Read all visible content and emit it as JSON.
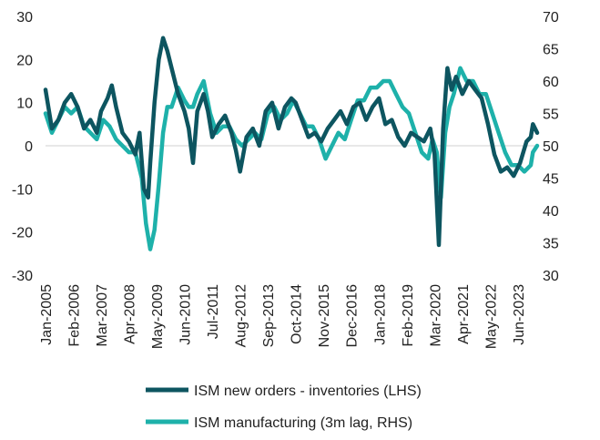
{
  "chart_data": {
    "type": "line",
    "title": "",
    "xlabel": "",
    "ylabel_left": "",
    "ylabel_right": "",
    "x_range": [
      "2005-01",
      "2024-03"
    ],
    "y_left_lim": [
      -30,
      30
    ],
    "y_left_ticks": [
      "30",
      "20",
      "10",
      "0",
      "-10",
      "-20",
      "-30"
    ],
    "y_right_lim": [
      30,
      70
    ],
    "y_right_ticks": [
      "70",
      "65",
      "60",
      "55",
      "50",
      "45",
      "40",
      "35",
      "30"
    ],
    "x_tick_labels": [
      "Jan-2005",
      "Feb-2006",
      "Mar-2007",
      "Apr-2008",
      "May-2009",
      "Jun-2010",
      "Jul-2011",
      "Aug-2012",
      "Sep-2013",
      "Oct-2014",
      "Nov-2015",
      "Dec-2016",
      "Jan-2018",
      "Feb-2019",
      "Mar-2020",
      "Apr-2021",
      "May-2022",
      "Jun-2023"
    ],
    "x_tick_dates": [
      "2005-01",
      "2006-02",
      "2007-03",
      "2008-04",
      "2009-05",
      "2010-06",
      "2011-07",
      "2012-08",
      "2013-09",
      "2014-10",
      "2015-11",
      "2016-12",
      "2018-01",
      "2019-02",
      "2020-03",
      "2021-04",
      "2022-05",
      "2023-06"
    ],
    "grid": false,
    "zero_line": true,
    "legend_position": "bottom",
    "series": [
      {
        "name": "ISM new orders - inventories (LHS)",
        "axis": "left",
        "color": "#0d5560",
        "points": [
          [
            "2005-01",
            13
          ],
          [
            "2005-04",
            4
          ],
          [
            "2005-07",
            6
          ],
          [
            "2005-10",
            10
          ],
          [
            "2006-01",
            12
          ],
          [
            "2006-04",
            9
          ],
          [
            "2006-07",
            4
          ],
          [
            "2006-10",
            6
          ],
          [
            "2007-01",
            3
          ],
          [
            "2007-03",
            8
          ],
          [
            "2007-06",
            11
          ],
          [
            "2007-08",
            14
          ],
          [
            "2007-10",
            9
          ],
          [
            "2008-01",
            3
          ],
          [
            "2008-04",
            1
          ],
          [
            "2008-07",
            -2
          ],
          [
            "2008-09",
            3
          ],
          [
            "2008-11",
            -10
          ],
          [
            "2009-01",
            -12
          ],
          [
            "2009-02",
            -4
          ],
          [
            "2009-04",
            10
          ],
          [
            "2009-06",
            20
          ],
          [
            "2009-08",
            25
          ],
          [
            "2009-10",
            22
          ],
          [
            "2009-12",
            18
          ],
          [
            "2010-03",
            12
          ],
          [
            "2010-06",
            8
          ],
          [
            "2010-08",
            4
          ],
          [
            "2010-10",
            -4
          ],
          [
            "2010-12",
            8
          ],
          [
            "2011-03",
            12
          ],
          [
            "2011-05",
            8
          ],
          [
            "2011-07",
            2
          ],
          [
            "2011-10",
            5
          ],
          [
            "2012-01",
            7
          ],
          [
            "2012-04",
            3
          ],
          [
            "2012-06",
            -1
          ],
          [
            "2012-08",
            -6
          ],
          [
            "2012-11",
            2
          ],
          [
            "2013-02",
            4
          ],
          [
            "2013-05",
            0
          ],
          [
            "2013-08",
            8
          ],
          [
            "2013-11",
            10
          ],
          [
            "2014-02",
            4
          ],
          [
            "2014-05",
            9
          ],
          [
            "2014-08",
            11
          ],
          [
            "2014-10",
            10
          ],
          [
            "2015-01",
            6
          ],
          [
            "2015-04",
            2
          ],
          [
            "2015-07",
            3
          ],
          [
            "2015-10",
            1
          ],
          [
            "2016-01",
            4
          ],
          [
            "2016-04",
            6
          ],
          [
            "2016-07",
            8
          ],
          [
            "2016-10",
            5
          ],
          [
            "2017-01",
            9
          ],
          [
            "2017-04",
            10
          ],
          [
            "2017-07",
            6
          ],
          [
            "2017-10",
            9
          ],
          [
            "2018-01",
            11
          ],
          [
            "2018-04",
            5
          ],
          [
            "2018-07",
            6
          ],
          [
            "2018-10",
            2
          ],
          [
            "2019-01",
            0
          ],
          [
            "2019-04",
            3
          ],
          [
            "2019-07",
            2
          ],
          [
            "2019-10",
            1
          ],
          [
            "2020-01",
            4
          ],
          [
            "2020-03",
            -2
          ],
          [
            "2020-05",
            -23
          ],
          [
            "2020-07",
            4
          ],
          [
            "2020-09",
            18
          ],
          [
            "2020-11",
            13
          ],
          [
            "2021-01",
            16
          ],
          [
            "2021-04",
            12
          ],
          [
            "2021-07",
            15
          ],
          [
            "2021-10",
            13
          ],
          [
            "2022-01",
            11
          ],
          [
            "2022-04",
            5
          ],
          [
            "2022-07",
            -2
          ],
          [
            "2022-10",
            -6
          ],
          [
            "2023-01",
            -5
          ],
          [
            "2023-04",
            -7
          ],
          [
            "2023-07",
            -4
          ],
          [
            "2023-10",
            1
          ],
          [
            "2023-12",
            2
          ],
          [
            "2024-01",
            5
          ],
          [
            "2024-03",
            3
          ]
        ]
      },
      {
        "name": "ISM manufacturing (3m lag, RHS)",
        "axis": "right",
        "color": "#1eb1aa",
        "points": [
          [
            "2005-01",
            55
          ],
          [
            "2005-04",
            52
          ],
          [
            "2005-07",
            54
          ],
          [
            "2005-10",
            56
          ],
          [
            "2006-01",
            55
          ],
          [
            "2006-04",
            56
          ],
          [
            "2006-07",
            53
          ],
          [
            "2006-10",
            52
          ],
          [
            "2007-01",
            51
          ],
          [
            "2007-04",
            54
          ],
          [
            "2007-07",
            53
          ],
          [
            "2007-10",
            51
          ],
          [
            "2008-01",
            50
          ],
          [
            "2008-04",
            49
          ],
          [
            "2008-07",
            49
          ],
          [
            "2008-10",
            45
          ],
          [
            "2008-12",
            38
          ],
          [
            "2009-02",
            34
          ],
          [
            "2009-04",
            37
          ],
          [
            "2009-06",
            44
          ],
          [
            "2009-08",
            52
          ],
          [
            "2009-10",
            56
          ],
          [
            "2009-12",
            56
          ],
          [
            "2010-03",
            59
          ],
          [
            "2010-06",
            57
          ],
          [
            "2010-08",
            56
          ],
          [
            "2010-10",
            56
          ],
          [
            "2010-12",
            58
          ],
          [
            "2011-03",
            60
          ],
          [
            "2011-06",
            55
          ],
          [
            "2011-09",
            52
          ],
          [
            "2011-12",
            53
          ],
          [
            "2012-03",
            53
          ],
          [
            "2012-06",
            51
          ],
          [
            "2012-09",
            50
          ],
          [
            "2012-12",
            51
          ],
          [
            "2013-03",
            52
          ],
          [
            "2013-06",
            51
          ],
          [
            "2013-09",
            55
          ],
          [
            "2013-12",
            56
          ],
          [
            "2014-03",
            54
          ],
          [
            "2014-06",
            55
          ],
          [
            "2014-09",
            57
          ],
          [
            "2014-12",
            55
          ],
          [
            "2015-03",
            53
          ],
          [
            "2015-06",
            53
          ],
          [
            "2015-09",
            51
          ],
          [
            "2015-12",
            48
          ],
          [
            "2016-03",
            50
          ],
          [
            "2016-06",
            52
          ],
          [
            "2016-09",
            51
          ],
          [
            "2016-12",
            54
          ],
          [
            "2017-03",
            57
          ],
          [
            "2017-06",
            57
          ],
          [
            "2017-09",
            59
          ],
          [
            "2017-12",
            59
          ],
          [
            "2018-03",
            60
          ],
          [
            "2018-06",
            60
          ],
          [
            "2018-09",
            58
          ],
          [
            "2018-12",
            56
          ],
          [
            "2019-03",
            55
          ],
          [
            "2019-06",
            52
          ],
          [
            "2019-09",
            49
          ],
          [
            "2019-12",
            48
          ],
          [
            "2020-02",
            51
          ],
          [
            "2020-04",
            49
          ],
          [
            "2020-06",
            42
          ],
          [
            "2020-08",
            52
          ],
          [
            "2020-10",
            56
          ],
          [
            "2020-12",
            58
          ],
          [
            "2021-03",
            62
          ],
          [
            "2021-06",
            60
          ],
          [
            "2021-09",
            60
          ],
          [
            "2021-12",
            58
          ],
          [
            "2022-03",
            58
          ],
          [
            "2022-06",
            55
          ],
          [
            "2022-09",
            52
          ],
          [
            "2022-12",
            49
          ],
          [
            "2023-03",
            47
          ],
          [
            "2023-06",
            47
          ],
          [
            "2023-09",
            46
          ],
          [
            "2023-12",
            47
          ],
          [
            "2024-01",
            49
          ],
          [
            "2024-03",
            50
          ]
        ]
      }
    ]
  }
}
